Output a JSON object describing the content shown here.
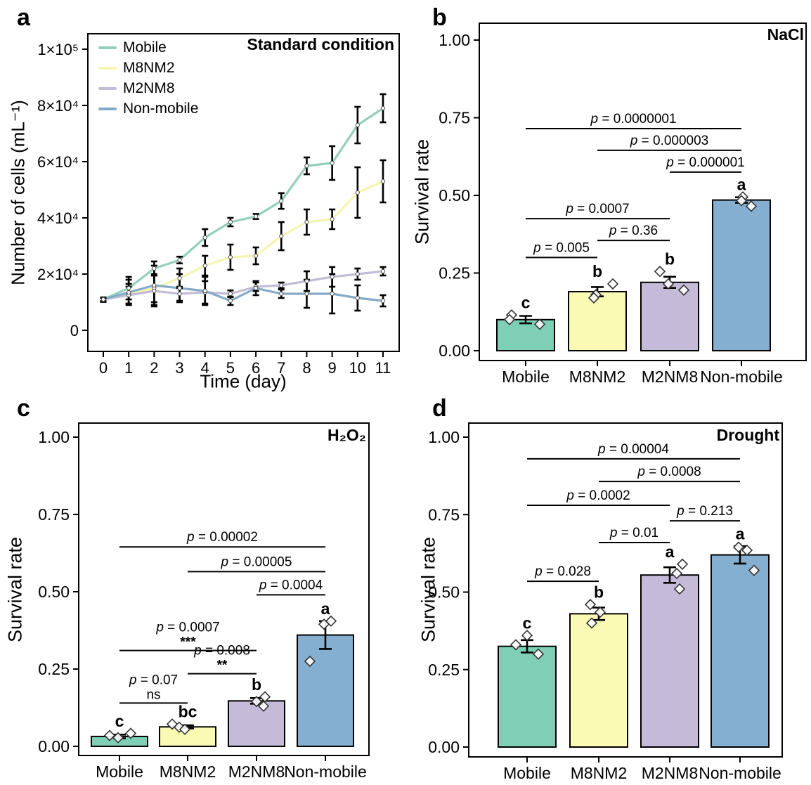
{
  "chart_data": [
    {
      "panel": "a",
      "type": "line",
      "title": "Standard condition",
      "xlabel": "Time (day)",
      "ylabel": "Number of cells (mL⁻¹)",
      "x": [
        0,
        1,
        2,
        3,
        4,
        5,
        6,
        7,
        8,
        9,
        10,
        11
      ],
      "ylim": [
        0,
        100000
      ],
      "ytick_values": [
        0,
        20000,
        40000,
        60000,
        80000,
        100000
      ],
      "ytick_labels": [
        "0",
        "2×10⁴",
        "4×10⁴",
        "6×10⁴",
        "8×10⁴",
        "1×10⁵"
      ],
      "legend_position": "top-left",
      "grid": false,
      "series": [
        {
          "name": "Mobile",
          "color": "#94CFBD",
          "values": [
            11000,
            15000,
            22000,
            25000,
            33000,
            38500,
            40500,
            46000,
            58500,
            59500,
            73000,
            79000
          ],
          "errors": [
            700,
            4000,
            2500,
            1200,
            3000,
            1500,
            900,
            2800,
            3000,
            6000,
            6500,
            5000
          ]
        },
        {
          "name": "M8NM2",
          "color": "#F5F5B2",
          "values": [
            10800,
            13000,
            15000,
            18500,
            23000,
            26000,
            26500,
            33500,
            38500,
            39500,
            49000,
            53000
          ],
          "errors": [
            700,
            3500,
            5000,
            3500,
            3500,
            4500,
            3000,
            5000,
            4500,
            3500,
            9000,
            7500
          ]
        },
        {
          "name": "M2NM8",
          "color": "#C2BCD6",
          "values": [
            11000,
            12500,
            14000,
            13000,
            13500,
            13000,
            15500,
            16000,
            17500,
            19000,
            20000,
            21000
          ],
          "errors": [
            600,
            3000,
            5500,
            2500,
            4000,
            1200,
            1500,
            1000,
            3500,
            3500,
            2000,
            1500
          ]
        },
        {
          "name": "Non-mobile",
          "color": "#84AAC8",
          "values": [
            11000,
            13500,
            16000,
            15000,
            14000,
            10500,
            15000,
            13000,
            13000,
            13000,
            11500,
            10500
          ],
          "errors": [
            600,
            4500,
            7000,
            5000,
            5000,
            1500,
            2500,
            1500,
            5000,
            7000,
            4500,
            2000
          ]
        }
      ]
    },
    {
      "panel": "b",
      "type": "bar",
      "title": "NaCl",
      "ylabel": "Survival rate",
      "categories": [
        "Mobile",
        "M8NM2",
        "M2NM8",
        "Non-mobile"
      ],
      "values": [
        0.1,
        0.19,
        0.22,
        0.485
      ],
      "errors": [
        0.012,
        0.015,
        0.018,
        0.009
      ],
      "bar_colors": [
        "#7FCFB6",
        "#FAFAB4",
        "#C4BBD9",
        "#85AFD0"
      ],
      "letters": [
        "c",
        "b",
        "b",
        "a"
      ],
      "points": [
        [
          [
            0.115,
            -20
          ],
          [
            0.1,
            -23
          ],
          [
            0.085,
            20
          ]
        ],
        [
          [
            0.215,
            22
          ],
          [
            0.18,
            -2
          ],
          [
            0.17,
            -5
          ]
        ],
        [
          [
            0.255,
            -14
          ],
          [
            0.215,
            -2
          ],
          [
            0.195,
            20
          ]
        ],
        [
          [
            0.495,
            2
          ],
          [
            0.483,
            0
          ],
          [
            0.465,
            14
          ]
        ]
      ],
      "ylim": [
        0,
        1.0
      ],
      "ytick_values": [
        0,
        0.25,
        0.5,
        0.75,
        1.0
      ],
      "ytick_labels": [
        "0.00",
        "0.25",
        "0.50",
        "0.75",
        "1.00"
      ],
      "grid": false,
      "comparisons": [
        {
          "g1": 0,
          "g2": 1,
          "y": 0.3,
          "label": "p = 0.005"
        },
        {
          "g1": 1,
          "g2": 2,
          "y": 0.355,
          "label": "p = 0.36"
        },
        {
          "g1": 0,
          "g2": 2,
          "y": 0.425,
          "label": "p = 0.0007"
        },
        {
          "g1": 2,
          "g2": 3,
          "y": 0.575,
          "label": "p = 0.000001"
        },
        {
          "g1": 1,
          "g2": 3,
          "y": 0.645,
          "label": "p = 0.000003"
        },
        {
          "g1": 0,
          "g2": 3,
          "y": 0.715,
          "label": "p = 0.0000001"
        }
      ]
    },
    {
      "panel": "c",
      "type": "bar",
      "title": "H₂O₂",
      "ylabel": "Survival rate",
      "categories": [
        "Mobile",
        "M8NM2",
        "M2NM8",
        "Non-mobile"
      ],
      "values": [
        0.032,
        0.063,
        0.147,
        0.36
      ],
      "errors": [
        0.006,
        0.005,
        0.009,
        0.045
      ],
      "bar_colors": [
        "#7FCFB6",
        "#FAFAB4",
        "#C4BBD9",
        "#85AFD0"
      ],
      "letters": [
        "c",
        "bc",
        "b",
        "a"
      ],
      "points": [
        [
          [
            0.035,
            -14
          ],
          [
            0.028,
            -2
          ],
          [
            0.042,
            16
          ]
        ],
        [
          [
            0.072,
            -22
          ],
          [
            0.062,
            -12
          ],
          [
            0.055,
            -4
          ]
        ],
        [
          [
            0.16,
            12
          ],
          [
            0.145,
            0
          ],
          [
            0.13,
            10
          ]
        ],
        [
          [
            0.405,
            8
          ],
          [
            0.395,
            -2
          ],
          [
            0.275,
            -22
          ]
        ]
      ],
      "ylim": [
        0,
        1.0
      ],
      "ytick_values": [
        0,
        0.25,
        0.5,
        0.75,
        1.0
      ],
      "ytick_labels": [
        "0.00",
        "0.25",
        "0.50",
        "0.75",
        "1.00"
      ],
      "grid": false,
      "comparisons": [
        {
          "g1": 0,
          "g2": 1,
          "y": 0.14,
          "label": "p = 0.07",
          "sub": "ns"
        },
        {
          "g1": 1,
          "g2": 2,
          "y": 0.235,
          "label": "p = 0.008",
          "sub": "**"
        },
        {
          "g1": 0,
          "g2": 2,
          "y": 0.31,
          "label": "p = 0.0007",
          "sub": "***"
        },
        {
          "g1": 2,
          "g2": 3,
          "y": 0.49,
          "label": "p = 0.0004"
        },
        {
          "g1": 1,
          "g2": 3,
          "y": 0.565,
          "label": "p = 0.00005"
        },
        {
          "g1": 0,
          "g2": 3,
          "y": 0.645,
          "label": "p = 0.00002"
        }
      ]
    },
    {
      "panel": "d",
      "type": "bar",
      "title": "Drought",
      "ylabel": "Survival rate",
      "categories": [
        "Mobile",
        "M8NM2",
        "M2NM8",
        "Non-mobile"
      ],
      "values": [
        0.325,
        0.43,
        0.555,
        0.62
      ],
      "errors": [
        0.02,
        0.02,
        0.025,
        0.028
      ],
      "bar_colors": [
        "#7FCFB6",
        "#FAFAB4",
        "#C4BBD9",
        "#85AFD0"
      ],
      "letters": [
        "c",
        "b",
        "a",
        "a"
      ],
      "points": [
        [
          [
            0.36,
            0
          ],
          [
            0.33,
            -16
          ],
          [
            0.3,
            16
          ]
        ],
        [
          [
            0.46,
            -12
          ],
          [
            0.435,
            2
          ],
          [
            0.4,
            -10
          ]
        ],
        [
          [
            0.59,
            18
          ],
          [
            0.56,
            10
          ],
          [
            0.51,
            14
          ]
        ],
        [
          [
            0.645,
            -2
          ],
          [
            0.635,
            10
          ],
          [
            0.57,
            20
          ]
        ]
      ],
      "ylim": [
        0,
        1.0
      ],
      "ytick_values": [
        0,
        0.25,
        0.5,
        0.75,
        1.0
      ],
      "ytick_labels": [
        "0.00",
        "0.25",
        "0.50",
        "0.75",
        "1.00"
      ],
      "grid": false,
      "comparisons": [
        {
          "g1": 0,
          "g2": 1,
          "y": 0.535,
          "label": "p = 0.028"
        },
        {
          "g1": 1,
          "g2": 2,
          "y": 0.66,
          "label": "p = 0.01"
        },
        {
          "g1": 2,
          "g2": 3,
          "y": 0.73,
          "label": "p = 0.213"
        },
        {
          "g1": 0,
          "g2": 2,
          "y": 0.78,
          "label": "p = 0.0002"
        },
        {
          "g1": 1,
          "g2": 3,
          "y": 0.857,
          "label": "p = 0.0008"
        },
        {
          "g1": 0,
          "g2": 3,
          "y": 0.93,
          "label": "p = 0.00004"
        }
      ]
    }
  ]
}
